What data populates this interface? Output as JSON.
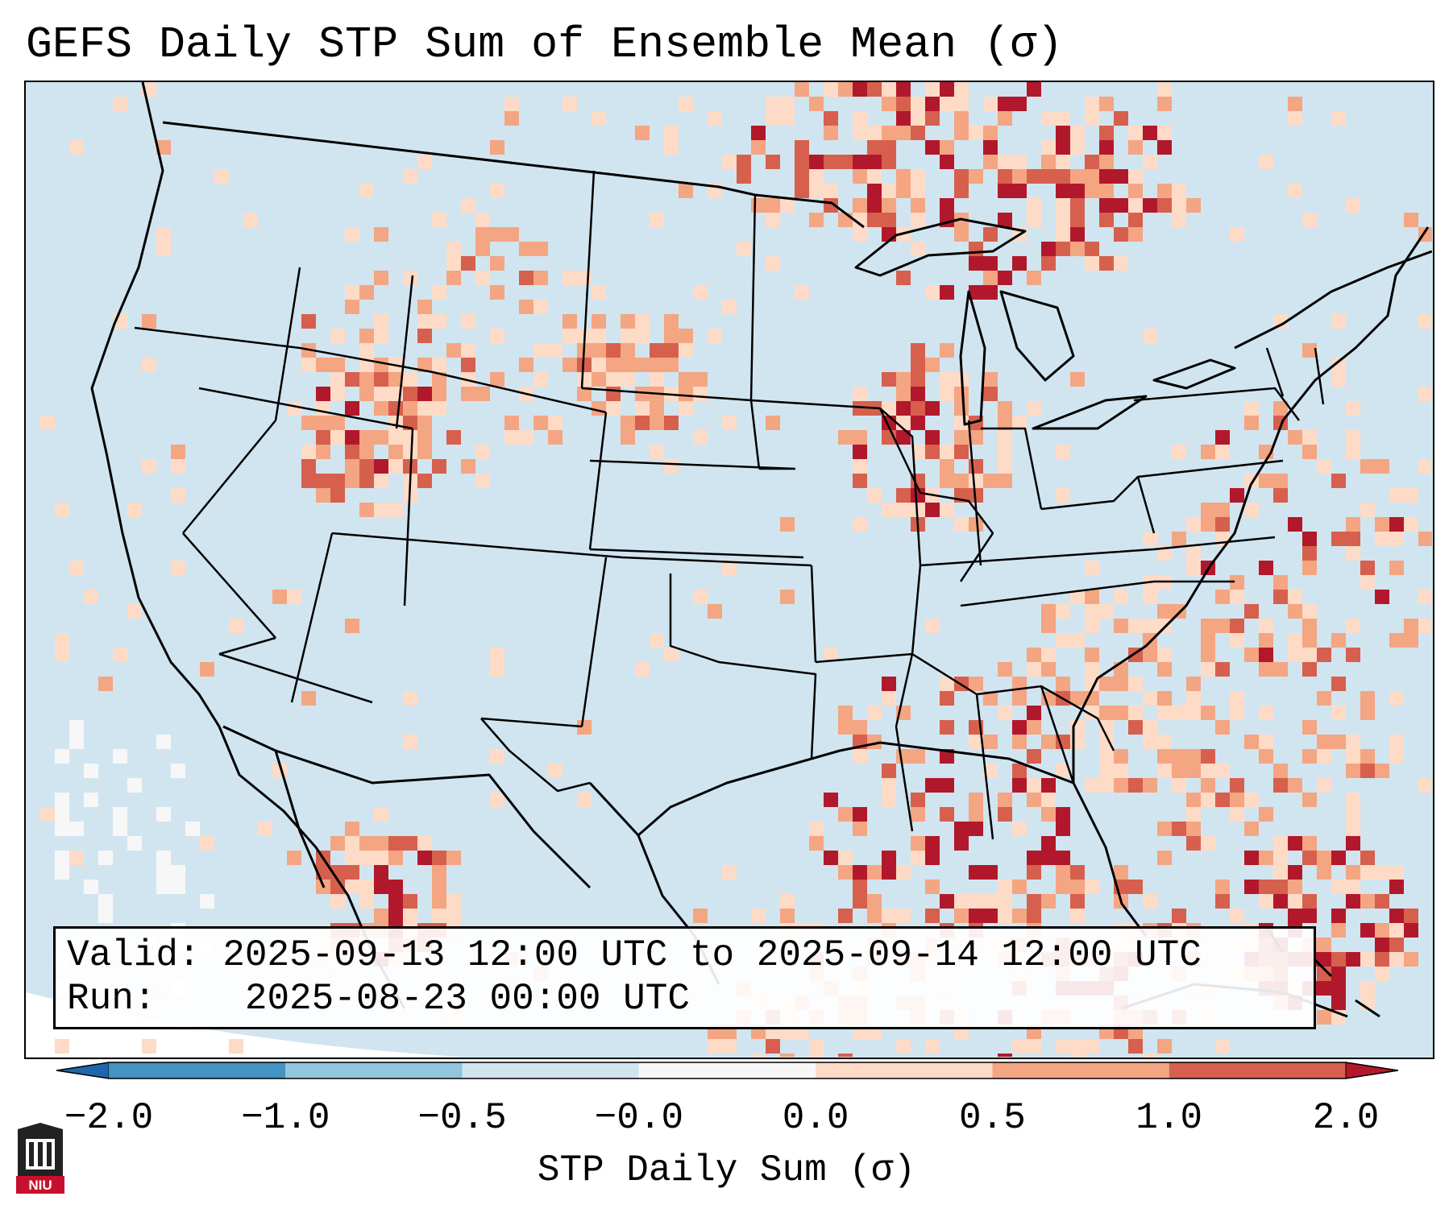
{
  "title": "GEFS Daily STP Sum of Ensemble Mean (σ)",
  "info": {
    "valid_label": "Valid:",
    "valid_value": "2025-09-13 12:00 UTC to 2025-09-14 12:00 UTC",
    "run_label": "Run:",
    "run_value": "2025-08-23 00:00 UTC"
  },
  "colorbar": {
    "label": "STP Daily Sum (σ)",
    "ticks": [
      "−2.0",
      "−1.0",
      "−0.5",
      "−0.0",
      "0.0",
      "0.5",
      "1.0",
      "2.0"
    ],
    "bins": [
      {
        "range": "< -2.0",
        "color": "#2166ac"
      },
      {
        "range": "-2.0 to -1.0",
        "color": "#4393c3"
      },
      {
        "range": "-1.0 to -0.5",
        "color": "#92c5de"
      },
      {
        "range": "-0.5 to -0.0",
        "color": "#d1e5f0"
      },
      {
        "range": "-0.0 to 0.0",
        "color": "#f7f7f7"
      },
      {
        "range": "0.0 to 0.5",
        "color": "#fddbc7"
      },
      {
        "range": "0.5 to 1.0",
        "color": "#f4a582"
      },
      {
        "range": "1.0 to 2.0",
        "color": "#d6604d"
      },
      {
        "range": "> 2.0",
        "color": "#b2182b"
      }
    ]
  },
  "map": {
    "region": "Continental United States",
    "background_color": "#d1e5f0",
    "outside_color": "#ffffff"
  },
  "logo": {
    "text": "NIU",
    "color": "#c8102e"
  }
}
